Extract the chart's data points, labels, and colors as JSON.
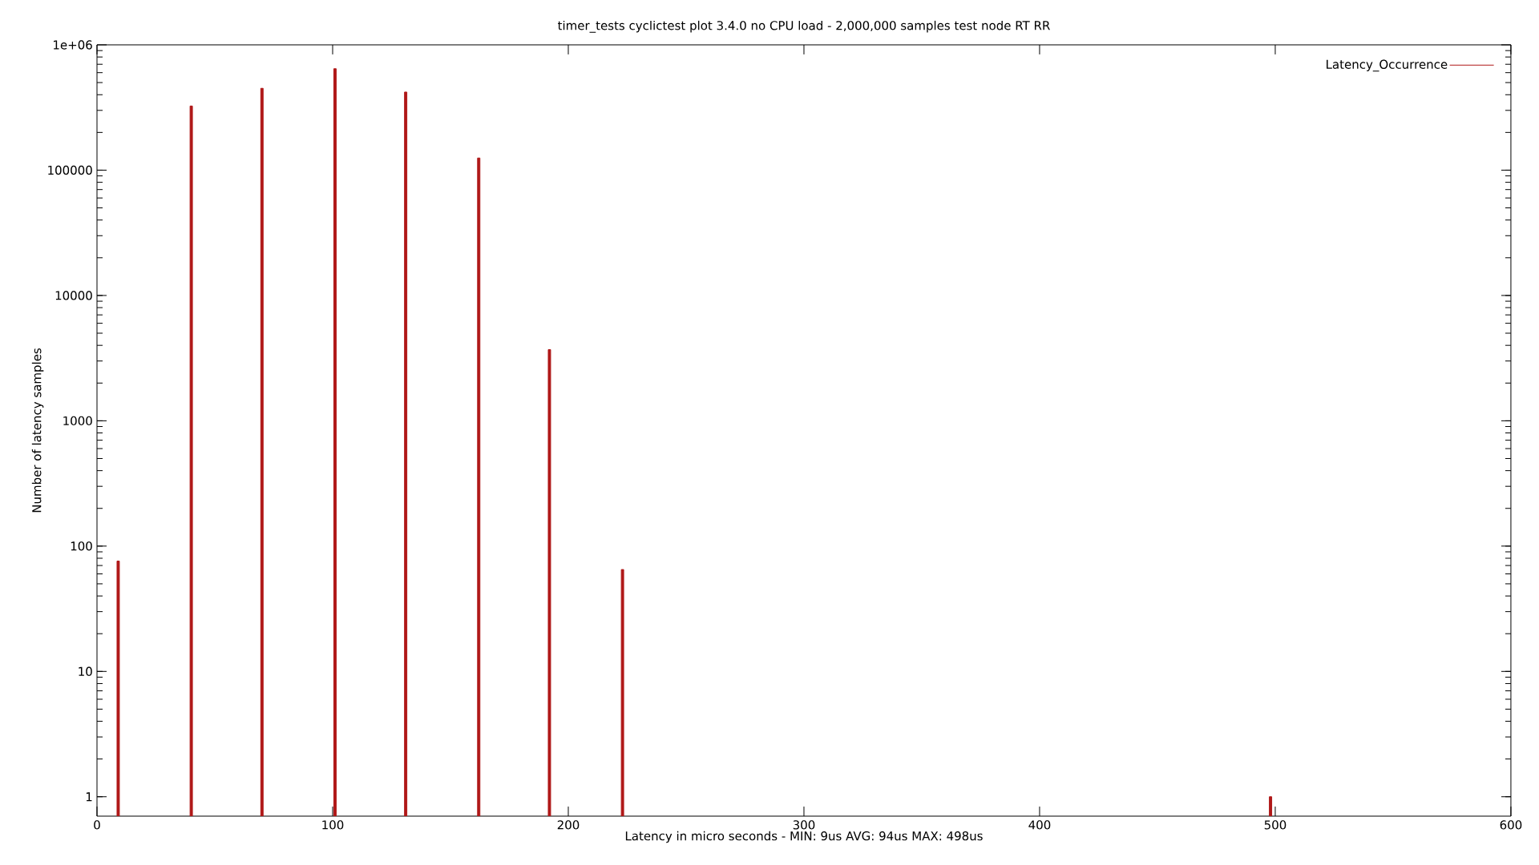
{
  "chart_data": {
    "type": "bar",
    "title": "timer_tests cyclictest plot 3.4.0 no CPU load  -  2,000,000 samples  test node RT RR",
    "xlabel": "Latency in micro seconds - MIN:  9us  AVG: 94us MAX: 498us",
    "ylabel": "Number of latency samples",
    "series": [
      {
        "name": "Latency_Occurrence",
        "color": "#b01818",
        "x": [
          9,
          40,
          70,
          101,
          131,
          162,
          192,
          223,
          498
        ],
        "values": [
          76,
          325000,
          450000,
          645000,
          420000,
          125000,
          3700,
          65,
          1
        ]
      }
    ],
    "xlim": [
      0,
      600
    ],
    "xticks": [
      0,
      100,
      200,
      300,
      400,
      500,
      600
    ],
    "ylim": [
      0.7,
      1000000
    ],
    "yticks": [
      1,
      10,
      100,
      1000,
      10000,
      100000,
      {
        "value": 1000000,
        "label": "1e+06"
      }
    ],
    "log": "y",
    "legend": "top right"
  }
}
